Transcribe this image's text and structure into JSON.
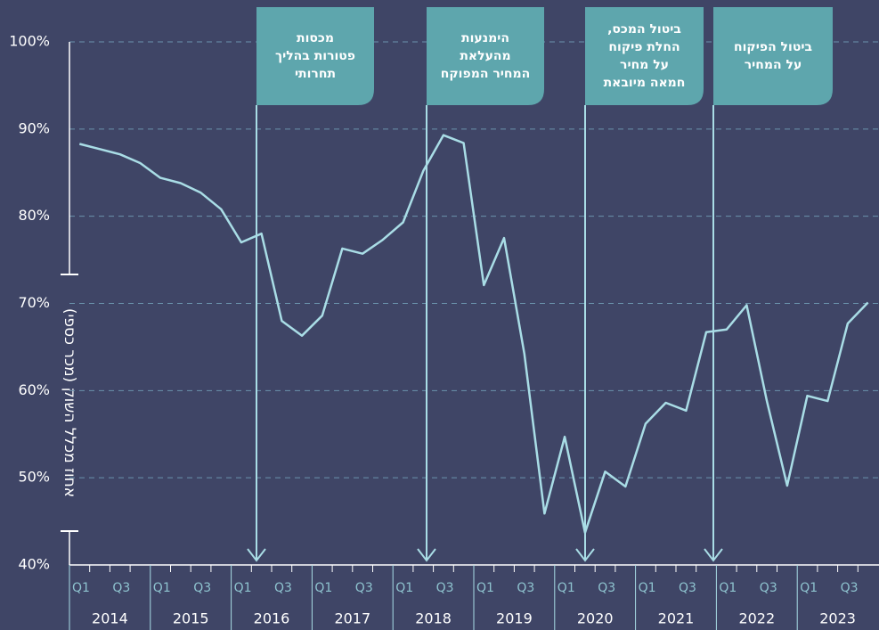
{
  "chart_data": {
    "type": "line",
    "y_label": "אחוז מכלל השוק (מכר כספי)",
    "categories": [
      "Q1",
      null,
      "Q3",
      null,
      "Q1",
      null,
      "Q3",
      null,
      "Q1",
      null,
      "Q3",
      null,
      "Q1",
      null,
      "Q3",
      null,
      "Q1",
      null,
      "Q3",
      null,
      "Q1",
      null,
      "Q3",
      null,
      "Q1",
      null,
      "Q3",
      null,
      "Q1",
      null,
      "Q3",
      null,
      "Q1",
      null,
      "Q3",
      null,
      "Q1",
      null,
      "Q3",
      null
    ],
    "year_labels": [
      "2014",
      "2015",
      "2016",
      "2017",
      "2018",
      "2019",
      "2020",
      "2021",
      "2022",
      "2023"
    ],
    "series": [
      {
        "color": "#a9dde6",
        "values": [
          88.3,
          87.7,
          87.1,
          86.1,
          84.4,
          83.8,
          82.7,
          80.8,
          77.0,
          78.0,
          68.0,
          66.3,
          68.6,
          76.3,
          75.7,
          77.3,
          79.3,
          85.2,
          89.3,
          88.4,
          72.1,
          77.5,
          64.2,
          45.9,
          54.7,
          43.7,
          50.7,
          49.0,
          56.2,
          58.6,
          57.7,
          66.7,
          67.0,
          69.8,
          58.8,
          49.1,
          59.4,
          58.8,
          67.7,
          70.1
        ]
      }
    ],
    "ylim": [
      40,
      100
    ],
    "yticks": [
      {
        "value": 40,
        "label": "40%"
      },
      {
        "value": 50,
        "label": "50%"
      },
      {
        "value": 60,
        "label": "60%"
      },
      {
        "value": 70,
        "label": "70%"
      },
      {
        "value": 80,
        "label": "80%"
      },
      {
        "value": 90,
        "label": "90%"
      },
      {
        "value": 100,
        "label": "100%"
      }
    ],
    "grid": true,
    "annotations": [
      {
        "lines": [
          "מכסות",
          "פטורות בהליך",
          "תחרותי"
        ]
      },
      {
        "lines": [
          "הימנעות",
          "מהעלאת",
          "המחיר המפוקח"
        ]
      },
      {
        "lines": [
          "ביטול המכס,",
          "החלת פיקוח",
          "על מחיר",
          "חמאה מיובאת"
        ]
      },
      {
        "lines": [
          "ביטול הפיקוח",
          "על המחיר"
        ]
      }
    ]
  }
}
